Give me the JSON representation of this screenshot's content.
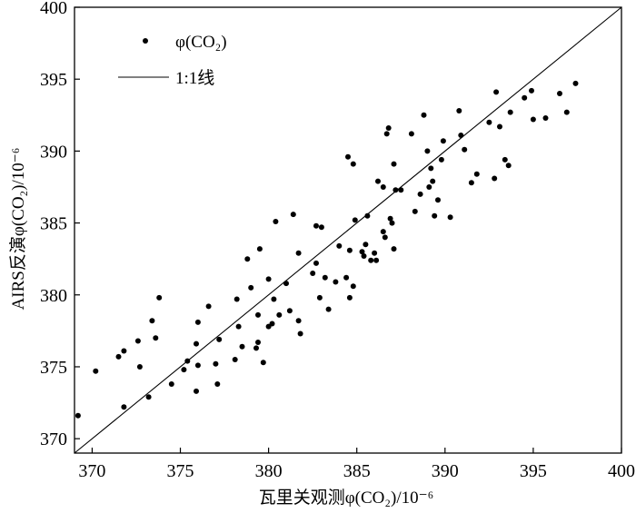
{
  "chart_data": {
    "type": "scatter",
    "xlabel": "瓦里关观测φ(CO₂)/10⁻⁶",
    "ylabel": "AIRS反演φ(CO₂)/10⁻⁶",
    "xlim": [
      369,
      400
    ],
    "ylim": [
      369,
      400
    ],
    "xticks": [
      370,
      375,
      380,
      385,
      390,
      395,
      400
    ],
    "yticks": [
      370,
      375,
      380,
      385,
      390,
      395,
      400
    ],
    "grid": false,
    "legend_position": "top-left",
    "series": [
      {
        "name": "φ(CO₂)",
        "kind": "points",
        "color": "#000000",
        "points": [
          [
            369.2,
            371.6
          ],
          [
            370.2,
            374.7
          ],
          [
            371.5,
            375.7
          ],
          [
            371.8,
            376.1
          ],
          [
            371.8,
            372.2
          ],
          [
            372.6,
            376.8
          ],
          [
            372.7,
            375.0
          ],
          [
            373.2,
            372.9
          ],
          [
            373.4,
            378.2
          ],
          [
            373.6,
            377.0
          ],
          [
            373.8,
            379.8
          ],
          [
            374.5,
            373.8
          ],
          [
            375.2,
            374.8
          ],
          [
            375.4,
            375.4
          ],
          [
            375.9,
            373.3
          ],
          [
            375.9,
            376.6
          ],
          [
            376.0,
            378.1
          ],
          [
            376.0,
            375.1
          ],
          [
            376.6,
            379.2
          ],
          [
            377.0,
            375.2
          ],
          [
            377.1,
            373.8
          ],
          [
            377.2,
            376.9
          ],
          [
            378.1,
            375.5
          ],
          [
            378.2,
            379.7
          ],
          [
            378.3,
            377.8
          ],
          [
            378.5,
            376.4
          ],
          [
            378.8,
            382.5
          ],
          [
            379.0,
            380.5
          ],
          [
            379.3,
            376.3
          ],
          [
            379.4,
            376.7
          ],
          [
            379.4,
            378.6
          ],
          [
            379.5,
            383.2
          ],
          [
            379.7,
            375.3
          ],
          [
            380.0,
            381.1
          ],
          [
            380.0,
            377.8
          ],
          [
            380.2,
            378.0
          ],
          [
            380.3,
            379.7
          ],
          [
            380.4,
            385.1
          ],
          [
            380.6,
            378.6
          ],
          [
            381.0,
            380.8
          ],
          [
            381.2,
            378.9
          ],
          [
            381.4,
            385.6
          ],
          [
            381.7,
            382.9
          ],
          [
            381.7,
            378.2
          ],
          [
            381.8,
            377.3
          ],
          [
            382.5,
            381.5
          ],
          [
            382.7,
            384.8
          ],
          [
            382.7,
            382.2
          ],
          [
            382.9,
            379.8
          ],
          [
            383.0,
            384.7
          ],
          [
            383.2,
            381.2
          ],
          [
            383.4,
            379.0
          ],
          [
            383.8,
            380.9
          ],
          [
            384.0,
            383.4
          ],
          [
            384.4,
            381.2
          ],
          [
            384.5,
            389.6
          ],
          [
            384.6,
            383.1
          ],
          [
            384.6,
            379.8
          ],
          [
            384.8,
            389.1
          ],
          [
            384.8,
            380.6
          ],
          [
            384.9,
            385.2
          ],
          [
            385.3,
            383.0
          ],
          [
            385.4,
            382.7
          ],
          [
            385.5,
            383.5
          ],
          [
            385.6,
            385.5
          ],
          [
            385.8,
            382.4
          ],
          [
            386.0,
            382.9
          ],
          [
            386.1,
            382.4
          ],
          [
            386.2,
            387.9
          ],
          [
            386.5,
            387.5
          ],
          [
            386.5,
            384.4
          ],
          [
            386.6,
            384.0
          ],
          [
            386.7,
            391.2
          ],
          [
            386.8,
            391.6
          ],
          [
            386.9,
            385.3
          ],
          [
            387.0,
            385.0
          ],
          [
            387.1,
            389.1
          ],
          [
            387.1,
            383.2
          ],
          [
            387.2,
            387.3
          ],
          [
            387.5,
            387.3
          ],
          [
            388.1,
            391.2
          ],
          [
            388.3,
            385.8
          ],
          [
            388.6,
            387.0
          ],
          [
            388.8,
            392.5
          ],
          [
            389.0,
            390.0
          ],
          [
            389.1,
            387.5
          ],
          [
            389.2,
            388.8
          ],
          [
            389.3,
            387.9
          ],
          [
            389.4,
            385.5
          ],
          [
            389.6,
            386.6
          ],
          [
            389.8,
            389.4
          ],
          [
            389.9,
            390.7
          ],
          [
            390.3,
            385.4
          ],
          [
            390.8,
            392.8
          ],
          [
            390.9,
            391.1
          ],
          [
            391.1,
            390.1
          ],
          [
            391.5,
            387.8
          ],
          [
            391.8,
            388.4
          ],
          [
            392.5,
            392.0
          ],
          [
            392.8,
            388.1
          ],
          [
            392.9,
            394.1
          ],
          [
            393.1,
            391.7
          ],
          [
            393.4,
            389.4
          ],
          [
            393.6,
            389.0
          ],
          [
            393.7,
            392.7
          ],
          [
            394.5,
            393.7
          ],
          [
            394.9,
            394.2
          ],
          [
            395.0,
            392.2
          ],
          [
            395.7,
            392.3
          ],
          [
            396.5,
            394.0
          ],
          [
            396.9,
            392.7
          ],
          [
            397.4,
            394.7
          ]
        ]
      },
      {
        "name": "1:1线",
        "kind": "line",
        "color": "#000000",
        "points": [
          [
            369,
            369
          ],
          [
            400,
            400
          ]
        ]
      }
    ]
  },
  "labels": {
    "legend_points": "φ(CO₂)",
    "legend_line": "1:1线"
  }
}
